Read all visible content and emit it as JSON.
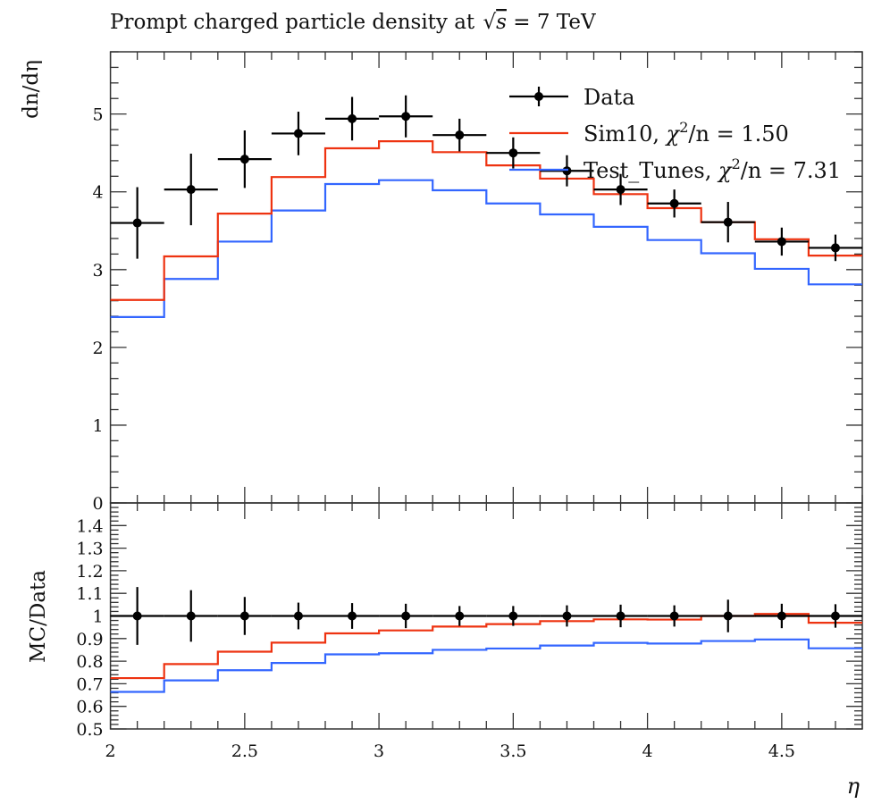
{
  "chart_data": [
    {
      "type": "line",
      "title": "Prompt charged particle density at √s = 7 TeV",
      "title_parts": {
        "prefix": "Prompt charged particle density at ",
        "sqrt_arg": "s",
        "suffix": " = 7 TeV"
      },
      "xlabel": "η",
      "ylabel": "dn/dη",
      "xlim": [
        2.0,
        4.8
      ],
      "ylim": [
        0,
        5.8
      ],
      "yticks": [
        "0",
        "1",
        "2",
        "3",
        "4",
        "5"
      ],
      "bin_edges": [
        2.0,
        2.2,
        2.4,
        2.6,
        2.8,
        3.0,
        3.2,
        3.4,
        3.6,
        3.8,
        4.0,
        4.2,
        4.4,
        4.6,
        4.8
      ],
      "legend_position": "top-right",
      "series": [
        {
          "name": "Data",
          "style": "points-with-errors",
          "color": "#000000",
          "values": [
            3.6,
            4.03,
            4.42,
            4.75,
            4.94,
            4.97,
            4.73,
            4.5,
            4.27,
            4.03,
            3.85,
            3.61,
            3.36,
            3.28
          ],
          "errors": [
            0.46,
            0.46,
            0.37,
            0.28,
            0.28,
            0.27,
            0.21,
            0.2,
            0.2,
            0.2,
            0.18,
            0.26,
            0.18,
            0.17
          ]
        },
        {
          "name": "Sim10, χ²/n = 1.50",
          "name_parts": {
            "label": "Sim10, ",
            "chi": "χ",
            "sup": "2",
            "rest": "/n = 1.50"
          },
          "style": "step",
          "color": "#ee3311",
          "values": [
            2.61,
            3.17,
            3.72,
            4.19,
            4.56,
            4.65,
            4.51,
            4.34,
            4.17,
            3.97,
            3.79,
            3.61,
            3.39,
            3.18
          ]
        },
        {
          "name": "Test_Tunes, χ²/n = 7.31",
          "name_parts": {
            "label": "Test_Tunes, ",
            "chi": "χ",
            "sup": "2",
            "rest": "/n = 7.31"
          },
          "style": "step",
          "color": "#3366ff",
          "values": [
            2.39,
            2.88,
            3.36,
            3.76,
            4.1,
            4.15,
            4.02,
            3.85,
            3.71,
            3.55,
            3.38,
            3.21,
            3.01,
            2.81
          ]
        }
      ]
    },
    {
      "type": "line",
      "xlabel": "η",
      "ylabel": "MC/Data",
      "xlim": [
        2.0,
        4.8
      ],
      "ylim": [
        0.5,
        1.5
      ],
      "xticks": [
        "2",
        "2.5",
        "3",
        "3.5",
        "4",
        "4.5"
      ],
      "yticks": [
        "0.5",
        "0.6",
        "0.7",
        "0.8",
        "0.9",
        "1",
        "1.1",
        "1.2",
        "1.3",
        "1.4"
      ],
      "series": [
        {
          "name": "Data",
          "style": "points-with-errors",
          "color": "#000000",
          "values": [
            1,
            1,
            1,
            1,
            1,
            1,
            1,
            1,
            1,
            1,
            1,
            1,
            1,
            1
          ],
          "errors": [
            0.128,
            0.114,
            0.084,
            0.059,
            0.057,
            0.054,
            0.044,
            0.044,
            0.047,
            0.05,
            0.047,
            0.072,
            0.054,
            0.052
          ]
        },
        {
          "name": "Sim10",
          "style": "step",
          "color": "#ee3311",
          "values": [
            0.725,
            0.787,
            0.842,
            0.882,
            0.923,
            0.936,
            0.953,
            0.964,
            0.977,
            0.985,
            0.984,
            1.0,
            1.009,
            0.97
          ]
        },
        {
          "name": "Test_Tunes",
          "style": "step",
          "color": "#3366ff",
          "values": [
            0.664,
            0.715,
            0.76,
            0.792,
            0.83,
            0.835,
            0.85,
            0.856,
            0.869,
            0.881,
            0.878,
            0.889,
            0.896,
            0.857
          ]
        }
      ]
    }
  ]
}
